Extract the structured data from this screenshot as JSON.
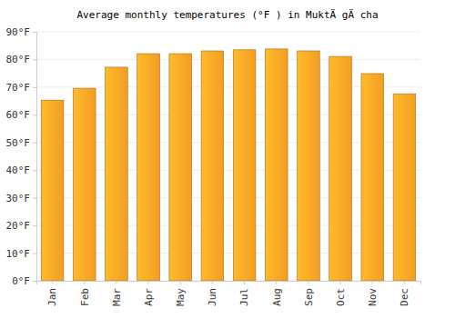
{
  "chart_data": {
    "type": "bar",
    "title": "Average monthly temperatures (°F ) in MuktÄ gÄ cha",
    "categories": [
      "Jan",
      "Feb",
      "Mar",
      "Apr",
      "May",
      "Jun",
      "Jul",
      "Aug",
      "Sep",
      "Oct",
      "Nov",
      "Dec"
    ],
    "values": [
      65.3,
      69.6,
      77.2,
      82.1,
      82.1,
      83.1,
      83.5,
      83.8,
      83.1,
      81.1,
      74.9,
      67.6
    ],
    "color": "#ffa726",
    "ylim": [
      0,
      90
    ],
    "yticks": [
      {
        "value": 0,
        "label": "0°F"
      },
      {
        "value": 10,
        "label": "10°F"
      },
      {
        "value": 20,
        "label": "20°F"
      },
      {
        "value": 30,
        "label": "30°F"
      },
      {
        "value": 40,
        "label": "40°F"
      },
      {
        "value": 50,
        "label": "50°F"
      },
      {
        "value": 60,
        "label": "60°F"
      },
      {
        "value": 70,
        "label": "70°F"
      },
      {
        "value": 80,
        "label": "80°F"
      },
      {
        "value": 90,
        "label": "90°F"
      }
    ],
    "grid": true
  }
}
